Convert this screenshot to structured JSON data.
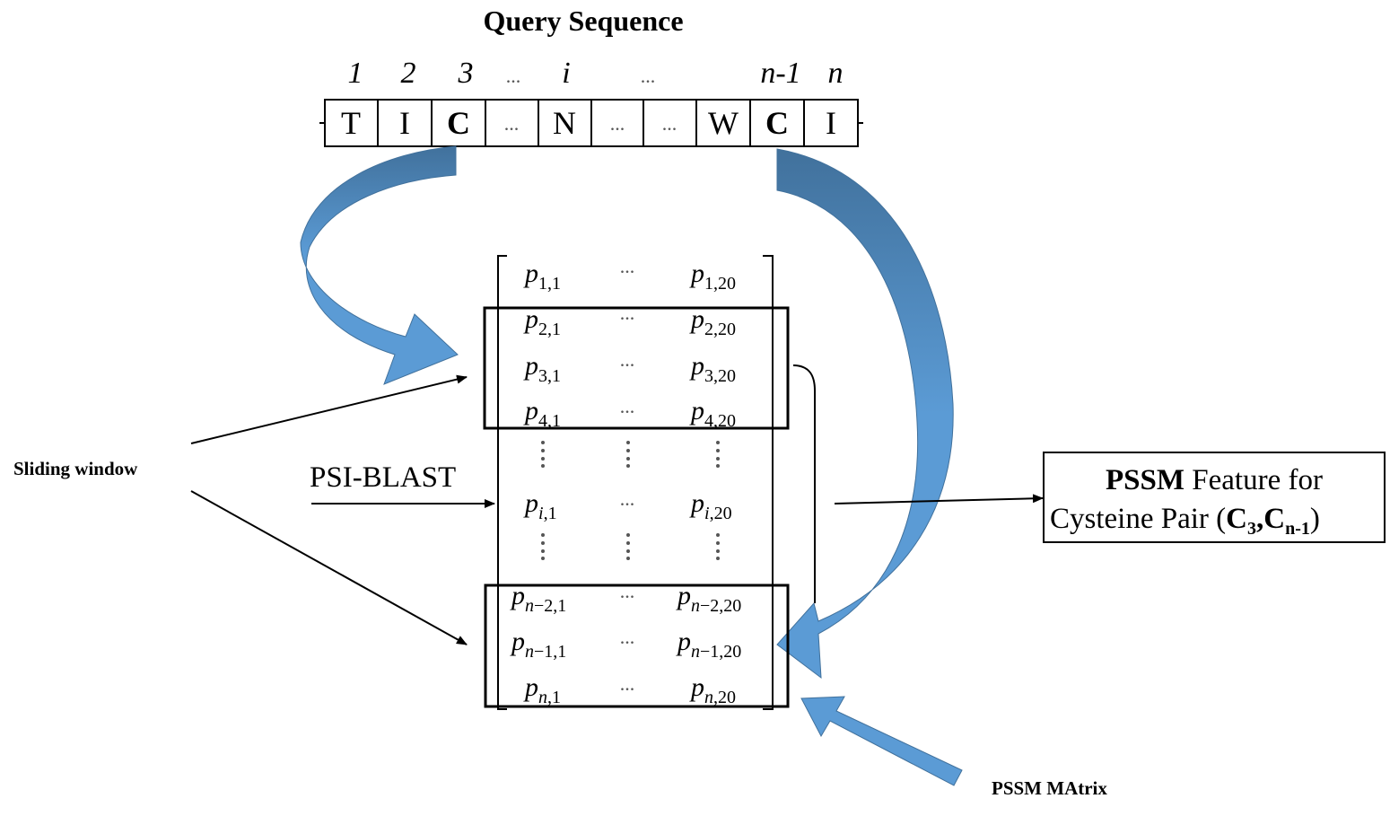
{
  "title": "Query Sequence",
  "positions": [
    "1",
    "2",
    "3",
    "...",
    "i",
    "...",
    "n-1",
    "n"
  ],
  "sequence": [
    "T",
    "I",
    "C",
    "...",
    "N",
    "...",
    "...",
    "W",
    "C",
    "I"
  ],
  "matrix": {
    "rows": [
      {
        "first": {
          "base": "p",
          "sub": "1,1"
        },
        "mid": "...",
        "last": {
          "base": "p",
          "sub": "1,20"
        }
      },
      {
        "first": {
          "base": "p",
          "sub": "2,1"
        },
        "mid": "...",
        "last": {
          "base": "p",
          "sub": "2,20"
        }
      },
      {
        "first": {
          "base": "p",
          "sub": "3,1"
        },
        "mid": "...",
        "last": {
          "base": "p",
          "sub": "3,20"
        }
      },
      {
        "first": {
          "base": "p",
          "sub": "4,1"
        },
        "mid": "...",
        "last": {
          "base": "p",
          "sub": "4,20"
        }
      },
      {
        "first": {
          "base": "p",
          "sub_i": "i",
          "sub": ",1"
        },
        "mid": "...",
        "last": {
          "base": "p",
          "sub_i": "i",
          "sub": ",20"
        }
      },
      {
        "first": {
          "base": "p",
          "sub_i": "n",
          "sub": "−2,1"
        },
        "mid": "...",
        "last": {
          "base": "p",
          "sub_i": "n",
          "sub": "−2,20"
        }
      },
      {
        "first": {
          "base": "p",
          "sub_i": "n",
          "sub": "−1,1"
        },
        "mid": "...",
        "last": {
          "base": "p",
          "sub_i": "n",
          "sub": "−1,20"
        }
      },
      {
        "first": {
          "base": "p",
          "sub_i": "n",
          "sub": ",1"
        },
        "mid": "...",
        "last": {
          "base": "p",
          "sub_i": "n",
          "sub": ",20"
        }
      }
    ]
  },
  "labels": {
    "sliding_window": "Sliding window",
    "psi_blast": "PSI-BLAST",
    "pssm_matrix": "PSSM MAtrix"
  },
  "feature_box": {
    "line1_bold": "PSSM",
    "line1_rest": " Feature for",
    "line2_pre": "Cysteine Pair (",
    "c3_base": "C",
    "c3_sub": "3",
    "comma": ",",
    "cn_base": "C",
    "cn_sub": "n-1",
    "line2_post": ")"
  },
  "colors": {
    "arrow_fill": "#5b9bd5",
    "arrow_dark": "#41719c",
    "line": "#000000"
  }
}
